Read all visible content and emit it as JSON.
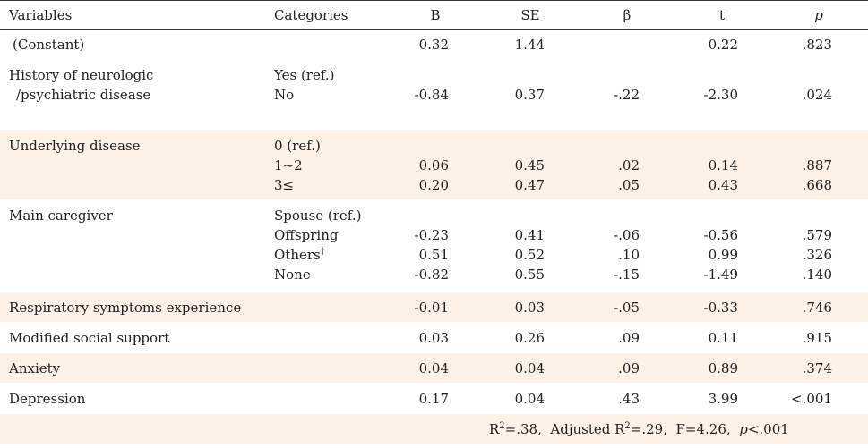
{
  "headers": {
    "variables": "Variables",
    "categories": "Categories",
    "b": "B",
    "se": "SE",
    "beta": "β",
    "t": "t",
    "p": "p"
  },
  "rows": {
    "constant": {
      "label": "(Constant)",
      "b": "0.32",
      "se": "1.44",
      "t": "0.22",
      "p": ".823"
    },
    "history": {
      "label1": "History of neurologic",
      "label2": "/psychiatric disease",
      "cat_ref": "Yes (ref.)",
      "cat": "No",
      "b": "-0.84",
      "se": "0.37",
      "beta": "-.22",
      "t": "-2.30",
      "p": ".024"
    },
    "underlying": {
      "label": "Underlying disease",
      "cat_ref": "0 (ref.)",
      "levels": [
        {
          "cat": "1~2",
          "b": "0.06",
          "se": "0.45",
          "beta": ".02",
          "t": "0.14",
          "p": ".887"
        },
        {
          "cat": "3≤",
          "b": "0.20",
          "se": "0.47",
          "beta": ".05",
          "t": "0.43",
          "p": ".668"
        }
      ]
    },
    "caregiver": {
      "label": "Main caregiver",
      "cat_ref": "Spouse (ref.)",
      "levels": [
        {
          "cat": "Offspring",
          "b": "-0.23",
          "se": "0.41",
          "beta": "-.06",
          "t": "-0.56",
          "p": ".579"
        },
        {
          "cat": "Others",
          "sup": "†",
          "b": "0.51",
          "se": "0.52",
          "beta": ".10",
          "t": "0.99",
          "p": ".326"
        },
        {
          "cat": "None",
          "b": "-0.82",
          "se": "0.55",
          "beta": "-.15",
          "t": "-1.49",
          "p": ".140"
        }
      ]
    },
    "respiratory": {
      "label": "Respiratory symptoms experience",
      "b": "-0.01",
      "se": "0.03",
      "beta": "-.05",
      "t": "-0.33",
      "p": ".746"
    },
    "social": {
      "label": "Modified social support",
      "b": "0.03",
      "se": "0.26",
      "beta": ".09",
      "t": "0.11",
      "p": ".915"
    },
    "anxiety": {
      "label": "Anxiety",
      "b": "0.04",
      "se": "0.04",
      "beta": ".09",
      "t": "0.89",
      "p": ".374"
    },
    "depression": {
      "label": "Depression",
      "b": "0.17",
      "se": "0.04",
      "beta": ".43",
      "t": "3.99",
      "p": "<.001"
    }
  },
  "footer": {
    "r2": "R",
    "r2_val": "=.38,  Adjusted R",
    "adj_val": "=.29,  F=4.26,  ",
    "p_label": "p",
    "p_val": "<.001",
    "sq": "2"
  }
}
